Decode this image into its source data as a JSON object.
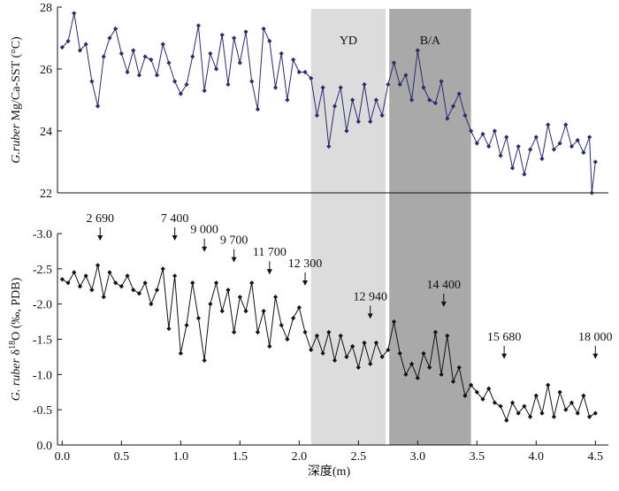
{
  "intervals": [
    {
      "label": "YD",
      "start": 2.1,
      "end": 2.73,
      "color": "#dcdcdc"
    },
    {
      "label": "B/A",
      "start": 2.76,
      "end": 3.45,
      "color": "#a9a9a9"
    }
  ],
  "xlabel": "深度(m)",
  "chart_data": [
    {
      "type": "line",
      "ylabel_parts": [
        "G.ruber",
        " Mg/Ca-SST (°C)"
      ],
      "color": "#2b2b6b",
      "xlim": [
        -0.04,
        4.55
      ],
      "ylim": [
        22,
        28
      ],
      "yticks": [
        22,
        24,
        26,
        28
      ],
      "x": [
        0.0,
        0.05,
        0.1,
        0.15,
        0.2,
        0.25,
        0.3,
        0.35,
        0.4,
        0.45,
        0.5,
        0.55,
        0.6,
        0.65,
        0.7,
        0.75,
        0.8,
        0.85,
        0.9,
        0.95,
        1.0,
        1.05,
        1.1,
        1.15,
        1.2,
        1.25,
        1.3,
        1.35,
        1.4,
        1.45,
        1.5,
        1.55,
        1.6,
        1.65,
        1.7,
        1.75,
        1.8,
        1.85,
        1.9,
        1.95,
        2.0,
        2.05,
        2.1,
        2.15,
        2.2,
        2.25,
        2.3,
        2.35,
        2.4,
        2.45,
        2.5,
        2.55,
        2.6,
        2.65,
        2.7,
        2.75,
        2.8,
        2.85,
        2.9,
        2.95,
        3.0,
        3.05,
        3.1,
        3.15,
        3.2,
        3.25,
        3.3,
        3.35,
        3.4,
        3.45,
        3.5,
        3.55,
        3.6,
        3.65,
        3.7,
        3.75,
        3.8,
        3.85,
        3.9,
        3.95,
        4.0,
        4.05,
        4.1,
        4.15,
        4.2,
        4.25,
        4.3,
        4.35,
        4.4,
        4.45,
        4.47,
        4.5
      ],
      "values": [
        26.7,
        26.9,
        27.8,
        26.6,
        26.8,
        25.6,
        24.8,
        26.4,
        27.0,
        27.3,
        26.5,
        25.9,
        26.6,
        25.8,
        26.4,
        26.3,
        25.8,
        26.8,
        26.2,
        25.6,
        25.2,
        25.5,
        26.4,
        27.4,
        25.3,
        26.5,
        26.0,
        27.1,
        25.5,
        27.0,
        26.2,
        27.2,
        25.6,
        24.7,
        27.3,
        26.9,
        25.4,
        26.5,
        25.0,
        26.3,
        25.9,
        25.9,
        25.7,
        24.5,
        25.4,
        23.5,
        24.8,
        25.4,
        24.0,
        25.0,
        24.3,
        25.5,
        24.3,
        25.0,
        24.5,
        25.5,
        26.2,
        25.5,
        25.8,
        25.0,
        26.6,
        25.4,
        25.0,
        24.9,
        25.6,
        24.4,
        24.8,
        25.2,
        24.5,
        24.0,
        23.6,
        23.9,
        23.5,
        24.0,
        23.2,
        23.8,
        22.8,
        23.5,
        22.6,
        23.4,
        23.8,
        23.1,
        24.2,
        23.4,
        23.6,
        24.2,
        23.5,
        23.7,
        23.3,
        23.8,
        22.0,
        23.0
      ]
    },
    {
      "type": "line",
      "ylabel_parts": [
        "G. ruber",
        " δ",
        "18",
        "O (‰, PDB)"
      ],
      "color": "#111111",
      "xlim": [
        -0.04,
        4.55
      ],
      "xticks": [
        {
          "value": 0,
          "label": "0.0"
        },
        {
          "value": 0.5,
          "label": "0.5"
        },
        {
          "value": 1,
          "label": "1.0"
        },
        {
          "value": 1.5,
          "label": "1.5"
        },
        {
          "value": 2,
          "label": "2.0"
        },
        {
          "value": 2.5,
          "label": "2.5"
        },
        {
          "value": 3,
          "label": "3.0"
        },
        {
          "value": 3.5,
          "label": "3.5"
        },
        {
          "value": 4,
          "label": "4.0"
        },
        {
          "value": 4.5,
          "label": "4.5"
        }
      ],
      "ylim": [
        0,
        -3
      ],
      "yticks": [
        {
          "value": -3,
          "label": "-3.0"
        },
        {
          "value": -2.5,
          "label": "-2.5"
        },
        {
          "value": -2,
          "label": "-2.0"
        },
        {
          "value": -1.5,
          "label": "-1.5"
        },
        {
          "value": -1,
          "label": "-1.0"
        },
        {
          "value": -0.5,
          "label": "-0.5"
        },
        {
          "value": 0,
          "label": "0.0"
        }
      ],
      "x": [
        0.0,
        0.05,
        0.1,
        0.15,
        0.2,
        0.25,
        0.3,
        0.35,
        0.4,
        0.45,
        0.5,
        0.55,
        0.6,
        0.65,
        0.7,
        0.75,
        0.8,
        0.85,
        0.9,
        0.95,
        1.0,
        1.05,
        1.1,
        1.15,
        1.2,
        1.25,
        1.3,
        1.35,
        1.4,
        1.45,
        1.5,
        1.55,
        1.6,
        1.65,
        1.7,
        1.75,
        1.8,
        1.85,
        1.9,
        1.95,
        2.0,
        2.05,
        2.1,
        2.15,
        2.2,
        2.25,
        2.3,
        2.35,
        2.4,
        2.45,
        2.5,
        2.55,
        2.6,
        2.65,
        2.7,
        2.75,
        2.8,
        2.85,
        2.9,
        2.95,
        3.0,
        3.05,
        3.1,
        3.15,
        3.2,
        3.25,
        3.3,
        3.35,
        3.4,
        3.45,
        3.5,
        3.55,
        3.6,
        3.65,
        3.7,
        3.75,
        3.8,
        3.85,
        3.9,
        3.95,
        4.0,
        4.05,
        4.1,
        4.15,
        4.2,
        4.25,
        4.3,
        4.35,
        4.4,
        4.45,
        4.5
      ],
      "values": [
        -2.35,
        -2.3,
        -2.45,
        -2.25,
        -2.4,
        -2.2,
        -2.55,
        -2.1,
        -2.45,
        -2.3,
        -2.25,
        -2.4,
        -2.2,
        -2.15,
        -2.3,
        -2.0,
        -2.2,
        -2.5,
        -1.65,
        -2.4,
        -1.3,
        -1.7,
        -2.3,
        -1.8,
        -1.2,
        -2.0,
        -2.3,
        -1.9,
        -2.2,
        -1.6,
        -2.1,
        -1.9,
        -2.3,
        -1.6,
        -1.9,
        -1.4,
        -2.1,
        -1.7,
        -1.5,
        -1.8,
        -1.95,
        -1.6,
        -1.35,
        -1.55,
        -1.3,
        -1.6,
        -1.2,
        -1.55,
        -1.25,
        -1.4,
        -1.1,
        -1.45,
        -1.15,
        -1.45,
        -1.25,
        -1.35,
        -1.75,
        -1.3,
        -1.0,
        -1.15,
        -0.95,
        -1.3,
        -1.1,
        -1.6,
        -1.0,
        -1.55,
        -0.9,
        -1.1,
        -0.7,
        -0.85,
        -0.75,
        -0.65,
        -0.8,
        -0.6,
        -0.55,
        -0.35,
        -0.6,
        -0.45,
        -0.55,
        -0.4,
        -0.7,
        -0.45,
        -0.85,
        -0.4,
        -0.75,
        -0.5,
        -0.6,
        -0.45,
        -0.7,
        -0.4,
        -0.45
      ],
      "annotations": [
        {
          "text": "2 690",
          "x": 0.32,
          "y": -2.9
        },
        {
          "text": "7 400",
          "x": 0.95,
          "y": -2.9
        },
        {
          "text": "9 000",
          "x": 1.2,
          "y": -2.74
        },
        {
          "text": "9 700",
          "x": 1.45,
          "y": -2.59
        },
        {
          "text": "11 700",
          "x": 1.75,
          "y": -2.42
        },
        {
          "text": "12 300",
          "x": 2.05,
          "y": -2.26
        },
        {
          "text": "12 940",
          "x": 2.6,
          "y": -1.79
        },
        {
          "text": "14 400",
          "x": 3.22,
          "y": -1.96
        },
        {
          "text": "15 680",
          "x": 3.73,
          "y": -1.22
        },
        {
          "text": "18 000",
          "x": 4.5,
          "y": -1.22
        }
      ]
    }
  ]
}
